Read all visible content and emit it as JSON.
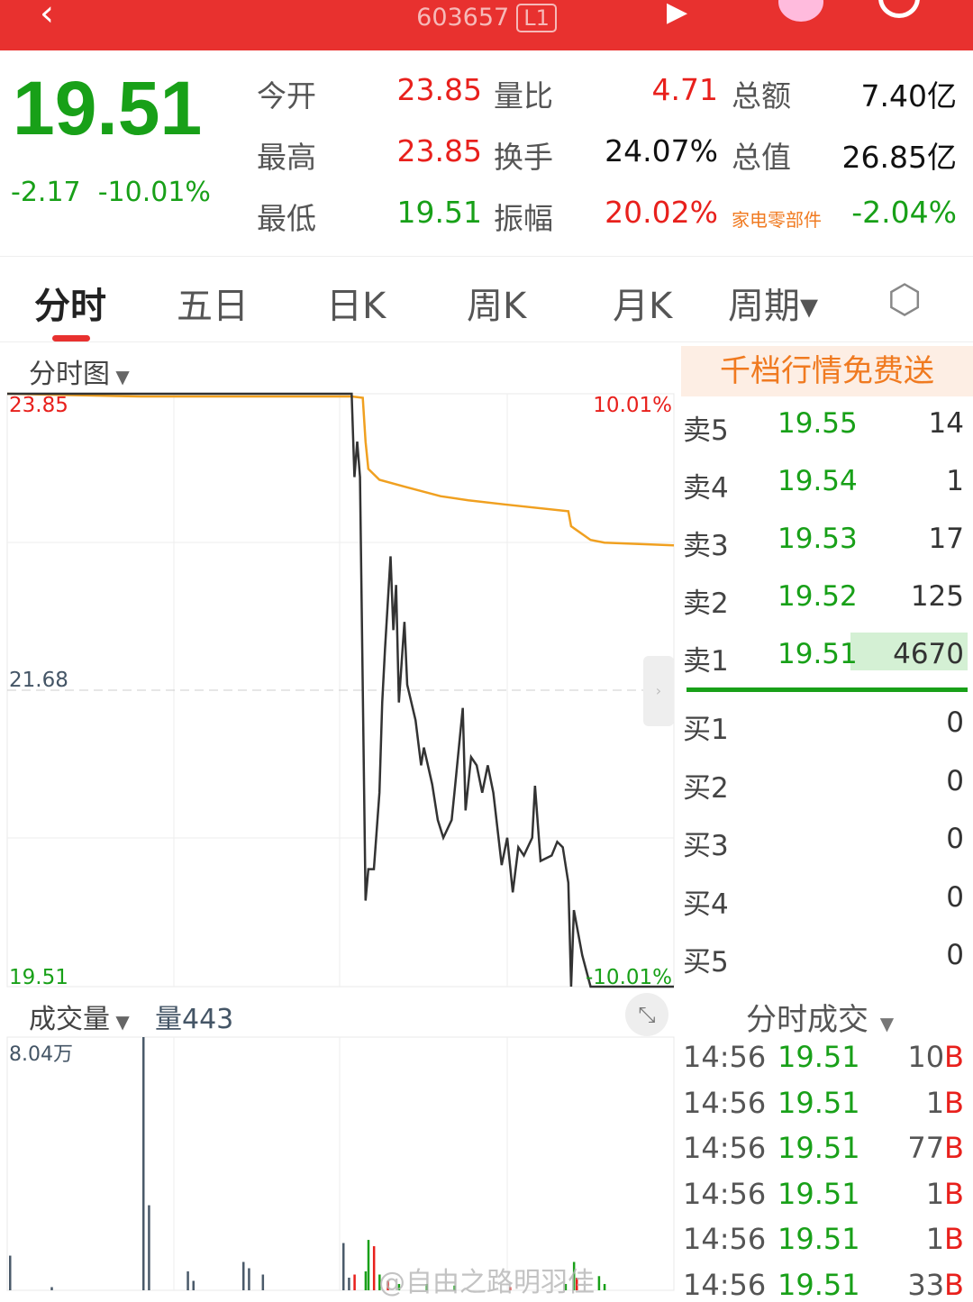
{
  "header": {
    "code": "603657",
    "level_badge": "L1",
    "icons": [
      "back-icon",
      "play-icon",
      "robot-icon",
      "search-icon"
    ]
  },
  "quote": {
    "price": "19.51",
    "change": "-2.17",
    "change_pct": "-10.01%",
    "fields": [
      {
        "label": "今开",
        "value": "23.85",
        "color": "red"
      },
      {
        "label": "量比",
        "value": "4.71",
        "color": "red"
      },
      {
        "label": "总额",
        "value": "7.40亿",
        "color": "blk"
      },
      {
        "label": "最高",
        "value": "23.85",
        "color": "red"
      },
      {
        "label": "换手",
        "value": "24.07%",
        "color": "blk"
      },
      {
        "label": "总值",
        "value": "26.85亿",
        "color": "blk"
      },
      {
        "label": "最低",
        "value": "19.51",
        "color": "green"
      },
      {
        "label": "振幅",
        "value": "20.02%",
        "color": "red"
      },
      {
        "label": "家电零部件",
        "value": "-2.04%",
        "color": "green"
      }
    ]
  },
  "tabs": [
    "分时",
    "五日",
    "日K",
    "周K",
    "月K",
    "周期"
  ],
  "chart": {
    "selector": "分时图",
    "price_top": "23.85",
    "price_mid": "21.68",
    "price_bottom": "19.51",
    "pct_top": "10.01%",
    "pct_bottom": "-10.01%",
    "volume_selector": "成交量",
    "volume_label": "量443",
    "volume_max": "8.04万"
  },
  "chart_data": {
    "type": "line",
    "ylim": [
      19.51,
      23.85
    ],
    "xlim": [
      0,
      240
    ],
    "price": [
      [
        0,
        23.85
      ],
      [
        124,
        23.85
      ],
      [
        125,
        23.24
      ],
      [
        126,
        23.5
      ],
      [
        127,
        23.24
      ],
      [
        129,
        20.14
      ],
      [
        130,
        20.37
      ],
      [
        132,
        20.37
      ],
      [
        134,
        20.93
      ],
      [
        135,
        21.59
      ],
      [
        136,
        21.98
      ],
      [
        138,
        22.66
      ],
      [
        139,
        22.12
      ],
      [
        140,
        22.45
      ],
      [
        141,
        21.59
      ],
      [
        143,
        22.18
      ],
      [
        144,
        21.72
      ],
      [
        147,
        21.46
      ],
      [
        149,
        21.13
      ],
      [
        150,
        21.26
      ],
      [
        153,
        20.99
      ],
      [
        155,
        20.73
      ],
      [
        157,
        20.6
      ],
      [
        160,
        20.73
      ],
      [
        161,
        20.93
      ],
      [
        164,
        21.55
      ],
      [
        165,
        20.8
      ],
      [
        167,
        21.19
      ],
      [
        169,
        21.13
      ],
      [
        171,
        20.93
      ],
      [
        173,
        21.13
      ],
      [
        175,
        20.93
      ],
      [
        178,
        20.4
      ],
      [
        180,
        20.6
      ],
      [
        182,
        20.2
      ],
      [
        184,
        20.53
      ],
      [
        186,
        20.47
      ],
      [
        189,
        20.6
      ],
      [
        190,
        20.98
      ],
      [
        192,
        20.43
      ],
      [
        196,
        20.47
      ],
      [
        198,
        20.57
      ],
      [
        200,
        20.53
      ],
      [
        202,
        20.27
      ],
      [
        203,
        19.51
      ],
      [
        204,
        20.07
      ],
      [
        207,
        19.74
      ],
      [
        210,
        19.51
      ],
      [
        240,
        19.51
      ]
    ],
    "average": [
      [
        0,
        23.85
      ],
      [
        48,
        23.83
      ],
      [
        124,
        23.83
      ],
      [
        128,
        23.82
      ],
      [
        129,
        23.5
      ],
      [
        130,
        23.3
      ],
      [
        134,
        23.22
      ],
      [
        143,
        23.17
      ],
      [
        156,
        23.1
      ],
      [
        166,
        23.07
      ],
      [
        179,
        23.04
      ],
      [
        202,
        22.99
      ],
      [
        203,
        22.88
      ],
      [
        210,
        22.78
      ],
      [
        215,
        22.76
      ],
      [
        240,
        22.74
      ]
    ],
    "volume_ylim": [
      0,
      8.04
    ],
    "volume": [
      [
        0,
        1.1,
        "gray"
      ],
      [
        15,
        0.1,
        "gray"
      ],
      [
        48,
        8.04,
        "gray"
      ],
      [
        50,
        2.7,
        "gray"
      ],
      [
        64,
        0.6,
        "gray"
      ],
      [
        66,
        0.3,
        "gray"
      ],
      [
        84,
        0.9,
        "gray"
      ],
      [
        86,
        0.7,
        "gray"
      ],
      [
        91,
        0.5,
        "gray"
      ],
      [
        120,
        1.5,
        "gray"
      ],
      [
        122,
        0.4,
        "gray"
      ],
      [
        124,
        0.5,
        "red"
      ],
      [
        128,
        0.6,
        "green"
      ],
      [
        129,
        1.6,
        "green"
      ],
      [
        131,
        1.4,
        "red"
      ],
      [
        133,
        0.5,
        "green"
      ],
      [
        136,
        0.3,
        "red"
      ],
      [
        140,
        0.2,
        "green"
      ],
      [
        150,
        0.2,
        "green"
      ],
      [
        160,
        0.15,
        "green"
      ],
      [
        180,
        0.1,
        "red"
      ],
      [
        200,
        0.2,
        "green"
      ],
      [
        203,
        0.9,
        "green"
      ],
      [
        204,
        0.4,
        "red"
      ],
      [
        212,
        0.45,
        "green"
      ],
      [
        214,
        0.2,
        "green"
      ]
    ]
  },
  "order_book": {
    "promo": "千档行情免费送",
    "asks": [
      {
        "label": "卖5",
        "price": "19.55",
        "vol": "14"
      },
      {
        "label": "卖4",
        "price": "19.54",
        "vol": "1"
      },
      {
        "label": "卖3",
        "price": "19.53",
        "vol": "17"
      },
      {
        "label": "卖2",
        "price": "19.52",
        "vol": "125"
      },
      {
        "label": "卖1",
        "price": "19.51",
        "vol": "4670"
      }
    ],
    "bids": [
      {
        "label": "买1",
        "vol": "0"
      },
      {
        "label": "买2",
        "vol": "0"
      },
      {
        "label": "买3",
        "vol": "0"
      },
      {
        "label": "买4",
        "vol": "0"
      },
      {
        "label": "买5",
        "vol": "0"
      }
    ]
  },
  "trades": {
    "title": "分时成交",
    "rows": [
      {
        "time": "14:56",
        "price": "19.51",
        "vol": "10",
        "side": "B"
      },
      {
        "time": "14:56",
        "price": "19.51",
        "vol": "1",
        "side": "B"
      },
      {
        "time": "14:56",
        "price": "19.51",
        "vol": "77",
        "side": "B"
      },
      {
        "time": "14:56",
        "price": "19.51",
        "vol": "1",
        "side": "B"
      },
      {
        "time": "14:56",
        "price": "19.51",
        "vol": "1",
        "side": "B"
      },
      {
        "time": "14:56",
        "price": "19.51",
        "vol": "33",
        "side": "B"
      }
    ]
  },
  "watermark": "@自由之路明羽佳",
  "colors": {
    "header": "#e8312f",
    "up": "#e8201c",
    "down": "#18a018",
    "average": "#f0a020"
  }
}
